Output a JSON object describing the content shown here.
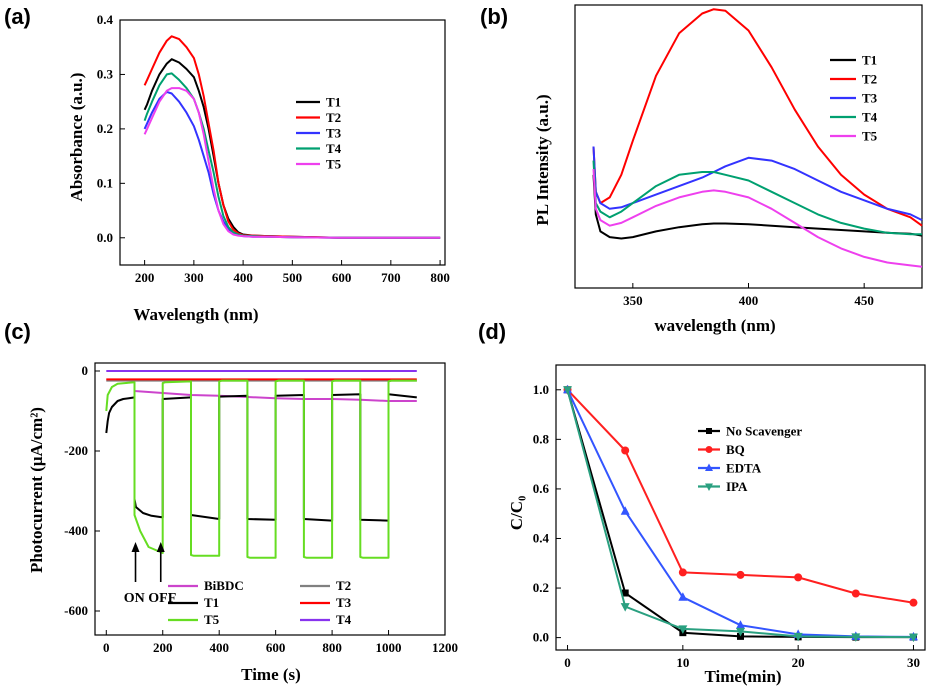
{
  "chart_data": [
    {
      "panel": "(a)",
      "type": "line",
      "xlabel": "Wavelength (nm)",
      "ylabel": "Absorbance (a.u.)",
      "xlim": [
        150,
        810
      ],
      "ylim": [
        -0.05,
        0.4
      ],
      "xticks": [
        200,
        300,
        400,
        500,
        600,
        700,
        800
      ],
      "yticks": [
        0.0,
        0.1,
        0.2,
        0.3,
        0.4
      ],
      "ytick_labels": [
        "0.0",
        "0.1",
        "0.2",
        "0.3",
        "0.4"
      ],
      "legend_position": "center-right",
      "series": [
        {
          "name": "T1",
          "color": "#000000",
          "x": [
            200,
            205,
            215,
            230,
            245,
            255,
            270,
            285,
            300,
            310,
            320,
            330,
            340,
            350,
            360,
            370,
            380,
            390,
            400,
            420,
            450,
            500,
            600,
            700,
            800
          ],
          "y": [
            0.235,
            0.245,
            0.27,
            0.3,
            0.32,
            0.328,
            0.322,
            0.31,
            0.295,
            0.27,
            0.24,
            0.2,
            0.15,
            0.1,
            0.06,
            0.035,
            0.02,
            0.01,
            0.006,
            0.004,
            0.003,
            0.002,
            0.0,
            0.0,
            0.0
          ]
        },
        {
          "name": "T2",
          "color": "#ff0000",
          "x": [
            200,
            205,
            215,
            230,
            245,
            255,
            270,
            285,
            300,
            310,
            320,
            330,
            340,
            350,
            360,
            370,
            380,
            390,
            400,
            420,
            450,
            500,
            600,
            700,
            800
          ],
          "y": [
            0.28,
            0.29,
            0.31,
            0.34,
            0.362,
            0.37,
            0.365,
            0.35,
            0.33,
            0.3,
            0.26,
            0.21,
            0.16,
            0.1,
            0.06,
            0.03,
            0.015,
            0.008,
            0.005,
            0.004,
            0.003,
            0.002,
            0.0,
            0.0,
            0.0
          ]
        },
        {
          "name": "T3",
          "color": "#3333ff",
          "x": [
            200,
            205,
            215,
            230,
            245,
            255,
            270,
            285,
            300,
            310,
            320,
            330,
            340,
            350,
            360,
            370,
            380,
            390,
            400,
            420,
            450,
            500,
            600,
            700,
            800
          ],
          "y": [
            0.2,
            0.21,
            0.23,
            0.255,
            0.268,
            0.265,
            0.25,
            0.23,
            0.205,
            0.18,
            0.15,
            0.12,
            0.08,
            0.05,
            0.03,
            0.015,
            0.008,
            0.005,
            0.003,
            0.002,
            0.002,
            0.001,
            0.0,
            0.0,
            0.0
          ]
        },
        {
          "name": "T4",
          "color": "#00a070",
          "x": [
            200,
            205,
            215,
            230,
            245,
            255,
            270,
            285,
            300,
            310,
            320,
            330,
            340,
            350,
            360,
            370,
            380,
            390,
            400,
            420,
            450,
            500,
            600,
            700,
            800
          ],
          "y": [
            0.215,
            0.228,
            0.25,
            0.28,
            0.3,
            0.302,
            0.29,
            0.275,
            0.255,
            0.23,
            0.2,
            0.16,
            0.12,
            0.075,
            0.04,
            0.02,
            0.01,
            0.006,
            0.004,
            0.003,
            0.002,
            0.001,
            0.0,
            0.0,
            0.0
          ]
        },
        {
          "name": "T5",
          "color": "#ee40ee",
          "x": [
            200,
            205,
            215,
            230,
            245,
            255,
            270,
            285,
            300,
            310,
            320,
            330,
            340,
            350,
            360,
            370,
            380,
            390,
            400,
            420,
            450,
            500,
            600,
            700,
            800
          ],
          "y": [
            0.19,
            0.2,
            0.22,
            0.25,
            0.27,
            0.275,
            0.275,
            0.27,
            0.255,
            0.23,
            0.19,
            0.14,
            0.09,
            0.05,
            0.025,
            0.012,
            0.006,
            0.004,
            0.003,
            0.002,
            0.002,
            0.001,
            0.0,
            0.0,
            0.0
          ]
        }
      ]
    },
    {
      "panel": "(b)",
      "type": "line",
      "xlabel": "wavelength (nm)",
      "ylabel": "PL Intensity (a.u.)",
      "xlim": [
        325,
        475
      ],
      "ylim": [
        0,
        1.0
      ],
      "xticks": [
        350,
        400,
        450
      ],
      "y_tick_labels_shown": false,
      "legend_position": "top-right",
      "series": [
        {
          "name": "T1",
          "color": "#000000",
          "x": [
            333,
            334,
            336,
            340,
            345,
            350,
            360,
            370,
            380,
            385,
            390,
            400,
            410,
            420,
            430,
            440,
            450,
            460,
            470,
            475
          ],
          "y": [
            0.4,
            0.26,
            0.2,
            0.18,
            0.175,
            0.18,
            0.2,
            0.215,
            0.225,
            0.228,
            0.228,
            0.225,
            0.22,
            0.215,
            0.21,
            0.205,
            0.2,
            0.195,
            0.192,
            0.185
          ]
        },
        {
          "name": "T2",
          "color": "#ff0000",
          "x": [
            333,
            334,
            336,
            340,
            345,
            350,
            360,
            370,
            380,
            385,
            390,
            400,
            410,
            420,
            430,
            440,
            450,
            460,
            470,
            475
          ],
          "y": [
            0.5,
            0.34,
            0.3,
            0.32,
            0.4,
            0.52,
            0.75,
            0.9,
            0.97,
            0.985,
            0.98,
            0.91,
            0.78,
            0.63,
            0.5,
            0.4,
            0.33,
            0.28,
            0.25,
            0.22
          ]
        },
        {
          "name": "T3",
          "color": "#3333ff",
          "x": [
            333,
            334,
            336,
            340,
            345,
            350,
            360,
            370,
            380,
            385,
            390,
            400,
            410,
            420,
            430,
            440,
            450,
            460,
            470,
            475
          ],
          "y": [
            0.5,
            0.34,
            0.3,
            0.28,
            0.285,
            0.3,
            0.33,
            0.36,
            0.39,
            0.41,
            0.43,
            0.46,
            0.45,
            0.42,
            0.38,
            0.34,
            0.31,
            0.28,
            0.26,
            0.24
          ]
        },
        {
          "name": "T4",
          "color": "#00a070",
          "x": [
            333,
            334,
            336,
            340,
            345,
            350,
            360,
            370,
            380,
            385,
            390,
            400,
            410,
            420,
            430,
            440,
            450,
            460,
            470,
            475
          ],
          "y": [
            0.45,
            0.3,
            0.27,
            0.25,
            0.27,
            0.3,
            0.36,
            0.4,
            0.41,
            0.41,
            0.4,
            0.38,
            0.34,
            0.3,
            0.26,
            0.23,
            0.21,
            0.195,
            0.19,
            0.19
          ]
        },
        {
          "name": "T5",
          "color": "#ee40ee",
          "x": [
            333,
            334,
            336,
            340,
            345,
            350,
            360,
            370,
            380,
            385,
            390,
            400,
            410,
            420,
            430,
            440,
            450,
            460,
            470,
            475
          ],
          "y": [
            0.42,
            0.28,
            0.24,
            0.22,
            0.23,
            0.25,
            0.29,
            0.32,
            0.34,
            0.345,
            0.34,
            0.32,
            0.28,
            0.23,
            0.18,
            0.14,
            0.11,
            0.09,
            0.08,
            0.075
          ]
        }
      ]
    },
    {
      "panel": "(c)",
      "type": "line",
      "xlabel": "Time (s)",
      "ylabel": "Photocurrent (μA/cm²)",
      "xlim": [
        -40,
        1200
      ],
      "ylim": [
        -660,
        20
      ],
      "xticks": [
        0,
        200,
        400,
        600,
        800,
        1000,
        1200
      ],
      "yticks": [
        0,
        -200,
        -400,
        -600
      ],
      "legend_position": "bottom-center",
      "legend_order": [
        "BiBDC",
        "T2",
        "T1",
        "T3",
        "T5",
        "T4"
      ],
      "annotation": "ON OFF",
      "annotation_arrows_at_x": [
        100,
        200
      ],
      "series": [
        {
          "name": "BiBDC",
          "color": "#cc44cc",
          "x": [
            100,
            200,
            300,
            400,
            500,
            600,
            700,
            800,
            900,
            1000,
            1100
          ],
          "y": [
            -50,
            -55,
            -60,
            -62,
            -65,
            -68,
            -70,
            -70,
            -72,
            -75,
            -75
          ]
        },
        {
          "name": "T2",
          "color": "#808080",
          "x": [
            0,
            1100
          ],
          "y": [
            -24,
            -24
          ]
        },
        {
          "name": "T1",
          "color": "#000000",
          "x": [
            0,
            5,
            10,
            20,
            40,
            60,
            80,
            100,
            100,
            105,
            130,
            160,
            200,
            200,
            300,
            300,
            400,
            400,
            500,
            500,
            600,
            600,
            700,
            700,
            800,
            800,
            900,
            900,
            1000,
            1000,
            1100
          ],
          "y": [
            -155,
            -125,
            -105,
            -90,
            -75,
            -70,
            -68,
            -66,
            -320,
            -340,
            -355,
            -362,
            -366,
            -70,
            -66,
            -360,
            -370,
            -64,
            -62,
            -370,
            -372,
            -62,
            -60,
            -370,
            -374,
            -60,
            -58,
            -372,
            -374,
            -58,
            -66
          ]
        },
        {
          "name": "T3",
          "color": "#ff0000",
          "x": [
            0,
            1100
          ],
          "y": [
            -21,
            -21
          ]
        },
        {
          "name": "T5",
          "color": "#66dd22",
          "x": [
            0,
            5,
            20,
            40,
            70,
            100,
            100,
            120,
            150,
            200,
            200,
            210,
            300,
            300,
            310,
            400,
            400,
            410,
            500,
            500,
            510,
            600,
            600,
            610,
            700,
            700,
            710,
            800,
            800,
            810,
            900,
            900,
            910,
            1000,
            1000,
            1010,
            1100
          ],
          "y": [
            -100,
            -60,
            -40,
            -32,
            -30,
            -28,
            -360,
            -400,
            -440,
            -455,
            -30,
            -28,
            -26,
            -460,
            -462,
            -462,
            -26,
            -24,
            -24,
            -465,
            -467,
            -467,
            -26,
            -24,
            -24,
            -465,
            -467,
            -467,
            -26,
            -24,
            -24,
            -465,
            -467,
            -467,
            -26,
            -24,
            -24
          ]
        },
        {
          "name": "T4",
          "color": "#8833ee",
          "x": [
            0,
            1100
          ],
          "y": [
            0,
            0
          ]
        }
      ]
    },
    {
      "panel": "(d)",
      "type": "line",
      "xlabel": "Time(min)",
      "ylabel": "C/C₀",
      "xlim": [
        -1,
        31
      ],
      "ylim": [
        -0.05,
        1.1
      ],
      "xticks": [
        0,
        10,
        20,
        30
      ],
      "yticks": [
        0.0,
        0.2,
        0.4,
        0.6,
        0.8,
        1.0
      ],
      "ytick_labels": [
        "0.0",
        "0.2",
        "0.4",
        "0.6",
        "0.8",
        "1.0"
      ],
      "legend_position": "center-right",
      "series": [
        {
          "name": "No Scavenger",
          "color": "#000000",
          "marker": "square",
          "x": [
            0,
            5,
            10,
            15,
            20,
            25,
            30
          ],
          "y": [
            1.0,
            0.18,
            0.02,
            0.005,
            0.003,
            0.002,
            0.002
          ]
        },
        {
          "name": "BQ",
          "color": "#ff2020",
          "marker": "circle",
          "x": [
            0,
            5,
            10,
            15,
            20,
            25,
            30
          ],
          "y": [
            1.0,
            0.755,
            0.263,
            0.253,
            0.243,
            0.178,
            0.141
          ]
        },
        {
          "name": "EDTA",
          "color": "#3355ff",
          "marker": "triangle-up",
          "x": [
            0,
            5,
            10,
            15,
            20,
            25,
            30
          ],
          "y": [
            1.0,
            0.51,
            0.163,
            0.05,
            0.013,
            0.005,
            0.003
          ]
        },
        {
          "name": "IPA",
          "color": "#2aa080",
          "marker": "triangle-down",
          "x": [
            0,
            5,
            10,
            15,
            20,
            25,
            30
          ],
          "y": [
            1.0,
            0.125,
            0.035,
            0.025,
            0.005,
            0.003,
            0.002
          ]
        }
      ]
    }
  ]
}
